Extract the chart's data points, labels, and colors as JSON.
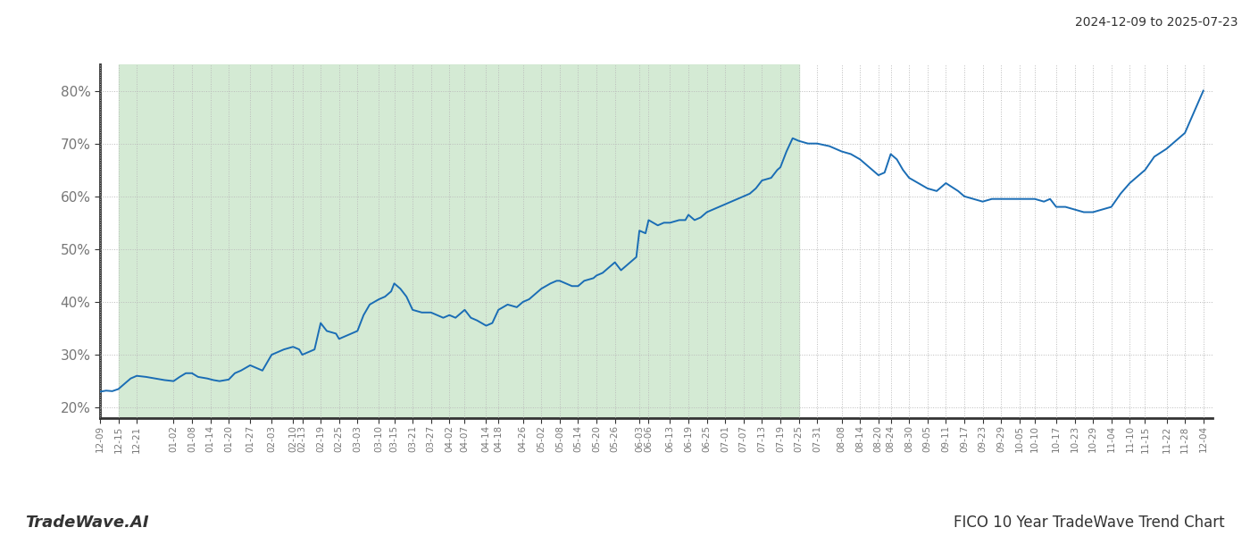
{
  "title_top_right": "2024-12-09 to 2025-07-23",
  "title_bottom_left": "TradeWave.AI",
  "title_bottom_right": "FICO 10 Year TradeWave Trend Chart",
  "line_color": "#1a6db5",
  "shaded_region_color": "#d4ead4",
  "shaded_start": "2024-12-15",
  "shaded_end": "2025-07-25",
  "y_min": 18,
  "y_max": 85,
  "y_ticks": [
    20,
    30,
    40,
    50,
    60,
    70,
    80
  ],
  "background_color": "#ffffff",
  "grid_color": "#bbbbbb",
  "x_start": "2024-12-09",
  "x_end": "2025-12-07",
  "dates": [
    "2024-12-09",
    "2024-12-11",
    "2024-12-13",
    "2024-12-15",
    "2024-12-17",
    "2024-12-19",
    "2024-12-21",
    "2024-12-24",
    "2024-12-27",
    "2024-12-30",
    "2025-01-02",
    "2025-01-04",
    "2025-01-06",
    "2025-01-08",
    "2025-01-10",
    "2025-01-13",
    "2025-01-15",
    "2025-01-17",
    "2025-01-20",
    "2025-01-22",
    "2025-01-24",
    "2025-01-27",
    "2025-01-29",
    "2025-01-31",
    "2025-02-03",
    "2025-02-05",
    "2025-02-07",
    "2025-02-10",
    "2025-02-12",
    "2025-02-13",
    "2025-02-15",
    "2025-02-17",
    "2025-02-19",
    "2025-02-21",
    "2025-02-24",
    "2025-02-25",
    "2025-02-27",
    "2025-03-03",
    "2025-03-05",
    "2025-03-07",
    "2025-03-10",
    "2025-03-12",
    "2025-03-14",
    "2025-03-15",
    "2025-03-17",
    "2025-03-19",
    "2025-03-21",
    "2025-03-24",
    "2025-03-27",
    "2025-03-31",
    "2025-04-02",
    "2025-04-04",
    "2025-04-07",
    "2025-04-09",
    "2025-04-11",
    "2025-04-14",
    "2025-04-16",
    "2025-04-18",
    "2025-04-21",
    "2025-04-24",
    "2025-04-26",
    "2025-04-28",
    "2025-04-30",
    "2025-05-02",
    "2025-05-05",
    "2025-05-07",
    "2025-05-08",
    "2025-05-10",
    "2025-05-12",
    "2025-05-14",
    "2025-05-16",
    "2025-05-19",
    "2025-05-20",
    "2025-05-22",
    "2025-05-24",
    "2025-05-26",
    "2025-05-28",
    "2025-05-30",
    "2025-06-02",
    "2025-06-03",
    "2025-06-05",
    "2025-06-06",
    "2025-06-09",
    "2025-06-11",
    "2025-06-13",
    "2025-06-16",
    "2025-06-18",
    "2025-06-19",
    "2025-06-21",
    "2025-06-23",
    "2025-06-25",
    "2025-06-27",
    "2025-07-01",
    "2025-07-03",
    "2025-07-07",
    "2025-07-09",
    "2025-07-11",
    "2025-07-13",
    "2025-07-16",
    "2025-07-18",
    "2025-07-19",
    "2025-07-21",
    "2025-07-23",
    "2025-07-25",
    "2025-07-28",
    "2025-07-31",
    "2025-08-04",
    "2025-08-08",
    "2025-08-11",
    "2025-08-14",
    "2025-08-17",
    "2025-08-20",
    "2025-08-22",
    "2025-08-24",
    "2025-08-26",
    "2025-08-28",
    "2025-08-30",
    "2025-09-02",
    "2025-09-05",
    "2025-09-08",
    "2025-09-11",
    "2025-09-15",
    "2025-09-17",
    "2025-09-20",
    "2025-09-23",
    "2025-09-26",
    "2025-09-29",
    "2025-10-02",
    "2025-10-05",
    "2025-10-08",
    "2025-10-10",
    "2025-10-13",
    "2025-10-15",
    "2025-10-17",
    "2025-10-20",
    "2025-10-23",
    "2025-10-26",
    "2025-10-29",
    "2025-11-01",
    "2025-11-04",
    "2025-11-07",
    "2025-11-10",
    "2025-11-13",
    "2025-11-15",
    "2025-11-18",
    "2025-11-22",
    "2025-11-25",
    "2025-11-28",
    "2025-12-01",
    "2025-12-04"
  ],
  "values": [
    23.0,
    23.2,
    23.1,
    23.5,
    24.5,
    25.5,
    26.0,
    25.8,
    25.5,
    25.2,
    25.0,
    25.8,
    26.5,
    26.5,
    25.8,
    25.5,
    25.2,
    25.0,
    25.3,
    26.5,
    27.0,
    28.0,
    27.5,
    27.0,
    30.0,
    30.5,
    31.0,
    31.5,
    31.0,
    30.0,
    30.5,
    31.0,
    36.0,
    34.5,
    34.0,
    33.0,
    33.5,
    34.5,
    37.5,
    39.5,
    40.5,
    41.0,
    42.0,
    43.5,
    42.5,
    41.0,
    38.5,
    38.0,
    38.0,
    37.0,
    37.5,
    37.0,
    38.5,
    37.0,
    36.5,
    35.5,
    36.0,
    38.5,
    39.5,
    39.0,
    40.0,
    40.5,
    41.5,
    42.5,
    43.5,
    44.0,
    44.0,
    43.5,
    43.0,
    43.0,
    44.0,
    44.5,
    45.0,
    45.5,
    46.5,
    47.5,
    46.0,
    47.0,
    48.5,
    53.5,
    53.0,
    55.5,
    54.5,
    55.0,
    55.0,
    55.5,
    55.5,
    56.5,
    55.5,
    56.0,
    57.0,
    57.5,
    58.5,
    59.0,
    60.0,
    60.5,
    61.5,
    63.0,
    63.5,
    65.0,
    65.5,
    68.5,
    71.0,
    70.5,
    70.0,
    70.0,
    69.5,
    68.5,
    68.0,
    67.0,
    65.5,
    64.0,
    64.5,
    68.0,
    67.0,
    65.0,
    63.5,
    62.5,
    61.5,
    61.0,
    62.5,
    61.0,
    60.0,
    59.5,
    59.0,
    59.5,
    59.5,
    59.5,
    59.5,
    59.5,
    59.5,
    59.0,
    59.5,
    58.0,
    58.0,
    57.5,
    57.0,
    57.0,
    57.5,
    58.0,
    60.5,
    62.5,
    64.0,
    65.0,
    67.5,
    69.0,
    70.5,
    72.0,
    76.0,
    80.0
  ],
  "xtick_labels": [
    "12-09",
    "12-15",
    "12-21",
    "01-02",
    "01-08",
    "01-14",
    "01-20",
    "01-27",
    "02-03",
    "02-10",
    "02-13",
    "02-19",
    "02-25",
    "03-03",
    "03-10",
    "03-15",
    "03-21",
    "03-27",
    "04-02",
    "04-07",
    "04-14",
    "04-18",
    "04-26",
    "05-02",
    "05-08",
    "05-14",
    "05-20",
    "05-26",
    "06-03",
    "06-06",
    "06-13",
    "06-19",
    "06-25",
    "07-01",
    "07-07",
    "07-13",
    "07-19",
    "07-25",
    "07-31",
    "08-08",
    "08-14",
    "08-20",
    "08-24",
    "08-30",
    "09-05",
    "09-11",
    "09-17",
    "09-23",
    "09-29",
    "10-05",
    "10-10",
    "10-17",
    "10-23",
    "10-29",
    "11-04",
    "11-10",
    "11-15",
    "11-22",
    "11-28",
    "12-04"
  ],
  "xtick_dates": [
    "2024-12-09",
    "2024-12-15",
    "2024-12-21",
    "2025-01-02",
    "2025-01-08",
    "2025-01-14",
    "2025-01-20",
    "2025-01-27",
    "2025-02-03",
    "2025-02-10",
    "2025-02-13",
    "2025-02-19",
    "2025-02-25",
    "2025-03-03",
    "2025-03-10",
    "2025-03-15",
    "2025-03-21",
    "2025-03-27",
    "2025-04-02",
    "2025-04-07",
    "2025-04-14",
    "2025-04-18",
    "2025-04-26",
    "2025-05-02",
    "2025-05-08",
    "2025-05-14",
    "2025-05-20",
    "2025-05-26",
    "2025-06-03",
    "2025-06-06",
    "2025-06-13",
    "2025-06-19",
    "2025-06-25",
    "2025-07-01",
    "2025-07-07",
    "2025-07-13",
    "2025-07-19",
    "2025-07-25",
    "2025-07-31",
    "2025-08-08",
    "2025-08-14",
    "2025-08-20",
    "2025-08-24",
    "2025-08-30",
    "2025-09-05",
    "2025-09-11",
    "2025-09-17",
    "2025-09-23",
    "2025-09-29",
    "2025-10-05",
    "2025-10-10",
    "2025-10-17",
    "2025-10-23",
    "2025-10-29",
    "2025-11-04",
    "2025-11-10",
    "2025-11-15",
    "2025-11-22",
    "2025-11-28",
    "2025-12-04"
  ]
}
